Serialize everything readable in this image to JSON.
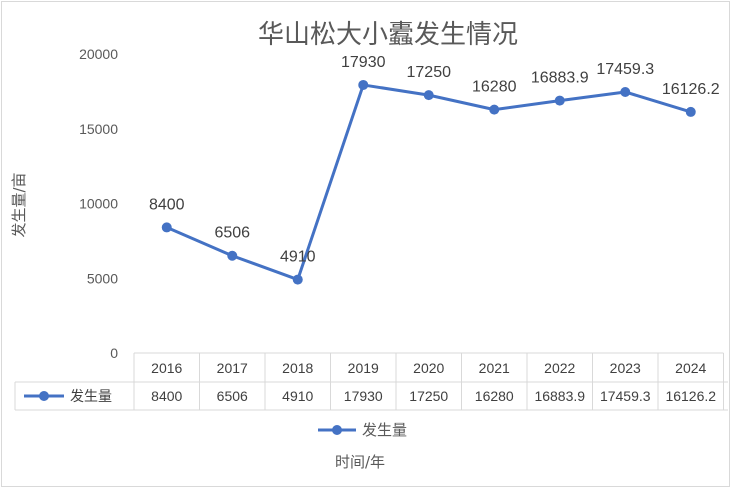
{
  "chart_data": {
    "type": "line",
    "title": "华山松大小蠹发生情况",
    "xlabel": "时间/年",
    "ylabel": "发生量/亩",
    "categories": [
      "2016",
      "2017",
      "2018",
      "2019",
      "2020",
      "2021",
      "2022",
      "2023",
      "2024"
    ],
    "series": [
      {
        "name": "发生量",
        "values": [
          8400,
          6506,
          4910,
          17930,
          17250,
          16280,
          16883.9,
          17459.3,
          16126.2
        ],
        "color": "#4472C4"
      }
    ],
    "ylim": [
      0,
      20000
    ],
    "yticks": [
      "0",
      "5000",
      "10000",
      "15000",
      "20000"
    ],
    "data_labels": [
      "8400",
      "6506",
      "4910",
      "17930",
      "17250",
      "16280",
      "16883.9",
      "17459.3",
      "16126.2"
    ],
    "data_table": true,
    "legend": "bottom",
    "grid": false
  }
}
